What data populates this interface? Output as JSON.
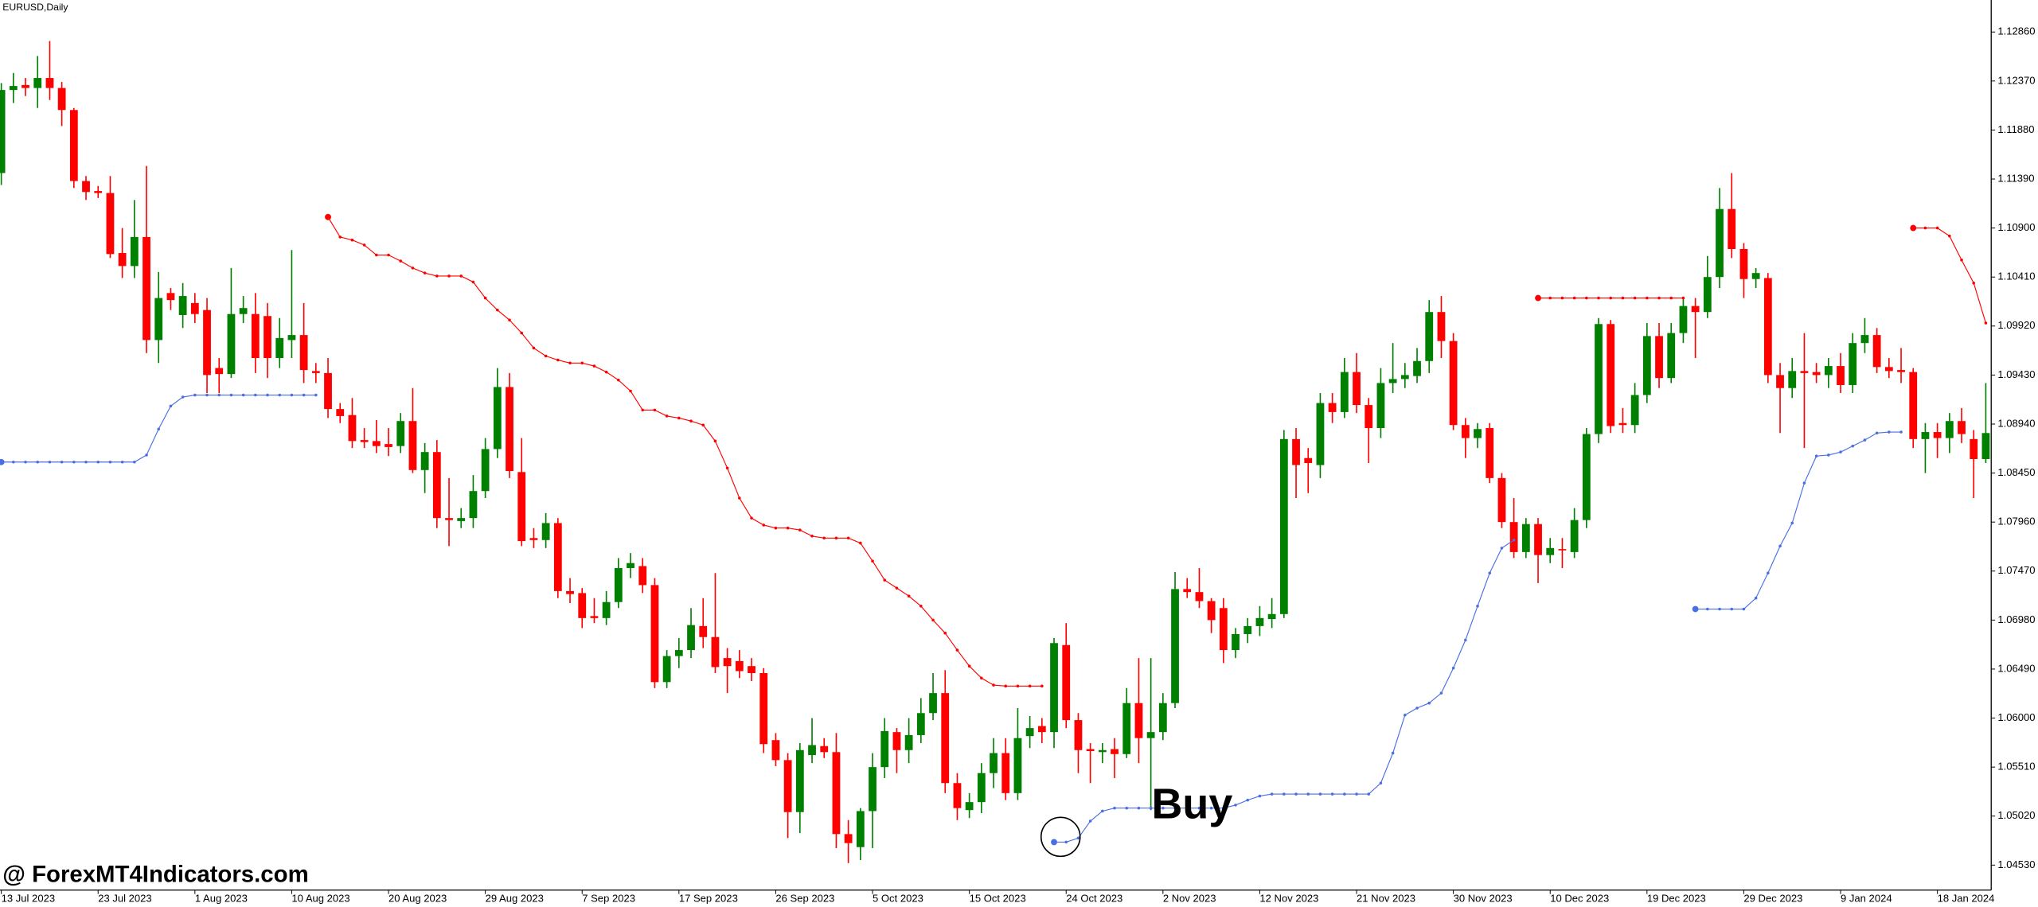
{
  "chart_data": {
    "type": "candlestick",
    "title": "EURUSD,Daily",
    "watermark": "@ ForexMT4Indicators.com",
    "annotation": "Buy",
    "up_color": "#008000",
    "down_color": "#ff0000",
    "ylim": [
      1.0428,
      1.1318
    ],
    "yticks": [
      {
        "value": 1.0453,
        "label": "1.04530"
      },
      {
        "value": 1.0502,
        "label": "1.05020"
      },
      {
        "value": 1.0551,
        "label": "1.05510"
      },
      {
        "value": 1.06,
        "label": "1.06000"
      },
      {
        "value": 1.0649,
        "label": "1.06490"
      },
      {
        "value": 1.0698,
        "label": "1.06980"
      },
      {
        "value": 1.0747,
        "label": "1.07470"
      },
      {
        "value": 1.0796,
        "label": "1.07960"
      },
      {
        "value": 1.0845,
        "label": "1.08450"
      },
      {
        "value": 1.0894,
        "label": "1.08940"
      },
      {
        "value": 1.0943,
        "label": "1.09430"
      },
      {
        "value": 1.0992,
        "label": "1.09920"
      },
      {
        "value": 1.1041,
        "label": "1.10410"
      },
      {
        "value": 1.109,
        "label": "1.10900"
      },
      {
        "value": 1.1139,
        "label": "1.11390"
      },
      {
        "value": 1.1188,
        "label": "1.11880"
      },
      {
        "value": 1.1237,
        "label": "1.12370"
      },
      {
        "value": 1.1286,
        "label": "1.12860"
      }
    ],
    "categories": [
      "13 Jul 2023",
      null,
      null,
      null,
      null,
      null,
      null,
      null,
      "23 Jul 2023",
      null,
      null,
      null,
      null,
      null,
      null,
      null,
      "1 Aug 2023",
      null,
      null,
      null,
      null,
      null,
      null,
      null,
      "10 Aug 2023",
      null,
      null,
      null,
      null,
      null,
      null,
      null,
      "20 Aug 2023",
      null,
      null,
      null,
      null,
      null,
      null,
      null,
      "29 Aug 2023",
      null,
      null,
      null,
      null,
      null,
      null,
      null,
      "7 Sep 2023",
      null,
      null,
      null,
      null,
      null,
      null,
      null,
      "17 Sep 2023",
      null,
      null,
      null,
      null,
      null,
      null,
      null,
      "26 Sep 2023",
      null,
      null,
      null,
      null,
      null,
      null,
      null,
      "5 Oct 2023",
      null,
      null,
      null,
      null,
      null,
      null,
      null,
      "15 Oct 2023",
      null,
      null,
      null,
      null,
      null,
      null,
      null,
      "24 Oct 2023",
      null,
      null,
      null,
      null,
      null,
      null,
      null,
      "2 Nov 2023",
      null,
      null,
      null,
      null,
      null,
      null,
      null,
      "12 Nov 2023",
      null,
      null,
      null,
      null,
      null,
      null,
      null,
      "21 Nov 2023",
      null,
      null,
      null,
      null,
      null,
      null,
      null,
      "30 Nov 2023",
      null,
      null,
      null,
      null,
      null,
      null,
      null,
      "10 Dec 2023",
      null,
      null,
      null,
      null,
      null,
      null,
      null,
      "19 Dec 2023",
      null,
      null,
      null,
      null,
      null,
      null,
      null,
      "29 Dec 2023",
      null,
      null,
      null,
      null,
      null,
      null,
      null,
      "9 Jan 2024",
      null,
      null,
      null,
      null,
      null,
      null,
      null,
      "18 Jan 2024",
      null,
      null,
      null,
      null
    ],
    "open": [
      1.1145,
      1.1228,
      1.1233,
      1.123,
      1.124,
      1.123,
      1.1208,
      1.1137,
      1.1127,
      1.1125,
      1.1065,
      1.1052,
      1.1081,
      1.0978,
      1.1025,
      1.1003,
      1.1015,
      1.1008,
      1.095,
      1.0944,
      1.1004,
      1.1004,
      1.1002,
      1.096,
      1.0978,
      1.0983,
      1.0947,
      1.0945,
      1.0909,
      1.0903,
      1.0878,
      1.0877,
      1.0874,
      1.0872,
      1.0897,
      1.0848,
      1.0866,
      1.08,
      1.0797,
      1.08,
      1.0827,
      1.0869,
      1.0931,
      1.0846,
      1.078,
      1.0778,
      1.0795,
      1.0727,
      1.0725,
      1.0702,
      1.07,
      1.0716,
      1.075,
      1.0752,
      1.0733,
      1.0636,
      1.0662,
      1.0668,
      1.0692,
      1.0681,
      1.066,
      1.0657,
      1.0652,
      1.0645,
      1.0578,
      1.0558,
      1.0506,
      1.0563,
      1.0572,
      1.0566,
      1.0484,
      1.0471,
      1.0507,
      1.0551,
      1.0586,
      1.0568,
      1.0583,
      1.0605,
      1.0625,
      1.0535,
      1.0508,
      1.0516,
      1.0545,
      1.0565,
      1.0525,
      1.0582,
      1.0592,
      1.0586,
      1.0673,
      1.0598,
      1.0569,
      1.0566,
      1.0569,
      1.0564,
      1.0615,
      1.058,
      1.0586,
      1.0615,
      1.0729,
      1.0726,
      1.0717,
      1.071,
      1.0668,
      1.0684,
      1.0692,
      1.0699,
      1.0704,
      1.0879,
      1.086,
      1.0853,
      1.0915,
      1.0906,
      1.0946,
      1.0913,
      1.089,
      1.0935,
      1.0939,
      1.0942,
      1.0957,
      1.1006,
      1.0977,
      1.0893,
      1.088,
      1.089,
      1.084,
      1.0796,
      1.0766,
      1.0794,
      1.0763,
      1.0769,
      1.0766,
      1.0798,
      1.0884,
      1.0994,
      1.0895,
      1.0893,
      1.0923,
      1.0982,
      1.094,
      1.0985,
      1.1012,
      1.1006,
      1.1041,
      1.1109,
      1.1069,
      1.1039,
      1.104,
      1.0943,
      1.093,
      1.0947,
      1.0946,
      1.0943,
      1.0952,
      1.0933,
      1.0975,
      1.0983,
      1.0951,
      1.0948,
      1.0946,
      1.0879,
      1.0886,
      1.088,
      1.0897,
      1.0879,
      1.0859
    ],
    "high": [
      1.1235,
      1.1245,
      1.124,
      1.1262,
      1.1277,
      1.1236,
      1.121,
      1.1142,
      1.1132,
      1.1142,
      1.109,
      1.1118,
      1.1152,
      1.1046,
      1.103,
      1.1035,
      1.1025,
      1.102,
      1.096,
      1.105,
      1.1022,
      1.1025,
      1.1015,
      1.1,
      1.1068,
      1.1015,
      1.0955,
      1.096,
      1.0915,
      1.092,
      1.089,
      1.0898,
      1.089,
      1.0905,
      1.093,
      1.0875,
      1.0878,
      1.084,
      1.081,
      1.0843,
      1.088,
      1.095,
      1.0945,
      1.088,
      1.079,
      1.0805,
      1.08,
      1.074,
      1.073,
      1.072,
      1.0727,
      1.076,
      1.0765,
      1.076,
      1.074,
      1.0668,
      1.068,
      1.071,
      1.072,
      1.0745,
      1.067,
      1.0668,
      1.066,
      1.065,
      1.0585,
      1.0565,
      1.0575,
      1.06,
      1.058,
      1.0585,
      1.0498,
      1.051,
      1.0565,
      1.06,
      1.059,
      1.06,
      1.062,
      1.0645,
      1.0648,
      1.0545,
      1.0525,
      1.0555,
      1.058,
      1.058,
      1.061,
      1.0602,
      1.06,
      1.068,
      1.0695,
      1.0605,
      1.0575,
      1.0575,
      1.058,
      1.063,
      1.066,
      1.066,
      1.0625,
      1.0746,
      1.074,
      1.075,
      1.072,
      1.072,
      1.069,
      1.07,
      1.0712,
      1.072,
      1.0888,
      1.089,
      1.087,
      1.0925,
      1.0925,
      1.096,
      1.0965,
      1.092,
      1.095,
      1.0975,
      1.0955,
      1.097,
      1.1018,
      1.1022,
      1.0985,
      1.09,
      1.0895,
      1.0895,
      1.0845,
      1.082,
      1.08,
      1.08,
      1.078,
      1.078,
      1.081,
      1.089,
      1.1,
      1.0998,
      1.091,
      1.0935,
      1.0995,
      1.0995,
      1.0995,
      1.102,
      1.102,
      1.1062,
      1.113,
      1.1145,
      1.1075,
      1.105,
      1.1045,
      1.0955,
      1.096,
      1.0985,
      1.0955,
      1.096,
      1.0965,
      1.0985,
      1.1,
      1.099,
      1.096,
      1.097,
      1.095,
      1.0895,
      1.0895,
      1.0905,
      1.091,
      1.0888,
      1.0935
    ],
    "low": [
      1.1133,
      1.1215,
      1.1222,
      1.121,
      1.1218,
      1.1192,
      1.113,
      1.1118,
      1.112,
      1.106,
      1.104,
      1.104,
      1.0965,
      1.0955,
      1.1008,
      1.099,
      1.0995,
      1.0925,
      1.0925,
      1.094,
      1.0995,
      1.0945,
      1.094,
      1.095,
      1.096,
      1.0935,
      1.0935,
      1.09,
      1.0895,
      1.087,
      1.087,
      1.0865,
      1.0862,
      1.0865,
      1.0845,
      1.0825,
      1.079,
      1.0772,
      1.079,
      1.079,
      1.082,
      1.086,
      1.084,
      1.0772,
      1.077,
      1.077,
      1.072,
      1.0715,
      1.069,
      1.0695,
      1.0693,
      1.071,
      1.074,
      1.0725,
      1.063,
      1.063,
      1.065,
      1.066,
      1.067,
      1.0645,
      1.0625,
      1.064,
      1.0637,
      1.0565,
      1.0552,
      1.048,
      1.0485,
      1.0555,
      1.056,
      1.047,
      1.0455,
      1.0458,
      1.047,
      1.054,
      1.0545,
      1.0555,
      1.0575,
      1.0598,
      1.0525,
      1.0498,
      1.05,
      1.0505,
      1.053,
      1.0518,
      1.0518,
      1.057,
      1.0575,
      1.057,
      1.059,
      1.0545,
      1.0535,
      1.0555,
      1.054,
      1.056,
      1.0555,
      1.0508,
      1.0578,
      1.061,
      1.072,
      1.071,
      1.0685,
      1.0655,
      1.066,
      1.0675,
      1.0682,
      1.069,
      1.07,
      1.082,
      1.0825,
      1.084,
      1.0895,
      1.09,
      1.0905,
      1.0855,
      1.088,
      1.0925,
      1.093,
      1.0935,
      1.0945,
      1.096,
      1.0888,
      1.086,
      1.087,
      1.0835,
      1.079,
      1.076,
      1.076,
      1.0735,
      1.0755,
      1.075,
      1.076,
      1.079,
      1.0875,
      1.0885,
      1.0885,
      1.0885,
      1.0915,
      1.093,
      1.0935,
      1.0975,
      1.096,
      1.1,
      1.103,
      1.106,
      1.102,
      1.103,
      1.0935,
      1.0885,
      1.092,
      1.087,
      1.0935,
      1.093,
      1.0925,
      1.0925,
      1.0965,
      1.0945,
      1.094,
      1.0935,
      1.087,
      1.0845,
      1.086,
      1.0865,
      1.0875,
      1.082,
      1.0855
    ],
    "close": [
      1.1228,
      1.1232,
      1.123,
      1.124,
      1.123,
      1.1208,
      1.1137,
      1.1126,
      1.1125,
      1.1064,
      1.1052,
      1.1081,
      1.0978,
      1.102,
      1.1018,
      1.1022,
      1.1004,
      1.0943,
      1.0944,
      1.1004,
      1.101,
      1.096,
      1.096,
      1.098,
      1.0983,
      1.0948,
      1.0945,
      1.0909,
      1.0902,
      1.0877,
      1.0876,
      1.0872,
      1.0871,
      1.0897,
      1.0848,
      1.0866,
      1.08,
      1.0798,
      1.08,
      1.0827,
      1.0869,
      1.0931,
      1.0847,
      1.0777,
      1.0778,
      1.0795,
      1.0727,
      1.0724,
      1.07,
      1.07,
      1.0716,
      1.075,
      1.0755,
      1.0733,
      1.0636,
      1.0662,
      1.0668,
      1.0693,
      1.0681,
      1.0651,
      1.0652,
      1.0647,
      1.0645,
      1.0574,
      1.0558,
      1.0506,
      1.0568,
      1.0573,
      1.0566,
      1.0484,
      1.0475,
      1.0507,
      1.0551,
      1.0587,
      1.0568,
      1.0583,
      1.0605,
      1.0625,
      1.0535,
      1.051,
      1.0516,
      1.0545,
      1.0565,
      1.0525,
      1.058,
      1.059,
      1.0586,
      1.0675,
      1.0598,
      1.0568,
      1.0567,
      1.0568,
      1.0564,
      1.0615,
      1.058,
      1.0586,
      1.0615,
      1.0729,
      1.0726,
      1.0717,
      1.0698,
      1.0668,
      1.0684,
      1.0692,
      1.07,
      1.0704,
      1.0879,
      1.0853,
      1.0855,
      1.0915,
      1.0906,
      1.0946,
      1.0913,
      1.089,
      1.0935,
      1.0939,
      1.0943,
      1.0957,
      1.1006,
      1.0977,
      1.0893,
      1.088,
      1.0889,
      1.084,
      1.0796,
      1.0766,
      1.0794,
      1.0763,
      1.077,
      1.0768,
      1.0798,
      1.0884,
      1.0994,
      1.0892,
      1.0893,
      1.0923,
      1.0982,
      1.094,
      1.0985,
      1.1012,
      1.1006,
      1.1041,
      1.1109,
      1.1069,
      1.1039,
      1.1045,
      1.0943,
      1.093,
      1.0947,
      1.0945,
      1.0943,
      1.0952,
      1.0933,
      1.0975,
      1.0983,
      1.0951,
      1.0947,
      1.0946,
      1.0879,
      1.0886,
      1.088,
      1.0897,
      1.0884,
      1.0859,
      1.0885
    ],
    "lines": [
      {
        "color": "#ff0000",
        "values": [
          null,
          null,
          null,
          null,
          null,
          null,
          null,
          null,
          null,
          null,
          null,
          null,
          null,
          null,
          null,
          null,
          null,
          null,
          null,
          null,
          null,
          null,
          null,
          null,
          null,
          null,
          null,
          1.1101,
          1.1081,
          1.1078,
          1.1073,
          1.1063,
          1.1063,
          1.1057,
          1.105,
          1.1045,
          1.1042,
          1.1042,
          1.1042,
          1.1036,
          1.102,
          1.1008,
          1.0998,
          1.0985,
          1.097,
          1.0962,
          1.0958,
          1.0955,
          1.0955,
          1.0952,
          1.0946,
          1.0938,
          1.0927,
          1.0908,
          1.0908,
          1.0902,
          1.09,
          1.0897,
          1.0893,
          1.0877,
          1.085,
          1.082,
          1.08,
          1.0793,
          1.079,
          1.079,
          1.0788,
          1.0782,
          1.078,
          1.078,
          1.078,
          1.0775,
          1.0757,
          1.0738,
          1.073,
          1.0722,
          1.0712,
          1.0698,
          1.0685,
          1.0668,
          1.0652,
          1.064,
          1.0633,
          1.0632,
          1.0632,
          1.0632,
          1.0632,
          null,
          null,
          null,
          null,
          null,
          null,
          null,
          null,
          null,
          null,
          null,
          null,
          null,
          null,
          null,
          null,
          null,
          null,
          null,
          null,
          null,
          null,
          null,
          null,
          null,
          null,
          null,
          null,
          null,
          null,
          null,
          null,
          null,
          null,
          null,
          null,
          null,
          null,
          null,
          null,
          1.102,
          1.102,
          1.102,
          1.102,
          1.102,
          1.102,
          1.102,
          1.102,
          1.102,
          1.102,
          1.102,
          1.102,
          1.102,
          null,
          null,
          null,
          null,
          null,
          null,
          null,
          null,
          null,
          null,
          null,
          null,
          null,
          null,
          null,
          null,
          null,
          null,
          1.109,
          1.109,
          1.109,
          1.1082,
          1.1058,
          1.1035,
          1.0995
        ]
      },
      {
        "color": "#4a6fe3",
        "values": [
          1.0856,
          1.0856,
          1.0856,
          1.0856,
          1.0856,
          1.0856,
          1.0856,
          1.0856,
          1.0856,
          1.0856,
          1.0856,
          1.0856,
          1.0863,
          1.0889,
          1.0912,
          1.0921,
          1.0923,
          1.0923,
          1.0923,
          1.0923,
          1.0923,
          1.0923,
          1.0923,
          1.0923,
          1.0923,
          1.0923,
          1.0923,
          null,
          null,
          null,
          null,
          null,
          null,
          null,
          null,
          null,
          null,
          null,
          null,
          null,
          null,
          null,
          null,
          null,
          null,
          null,
          null,
          null,
          null,
          null,
          null,
          null,
          null,
          null,
          null,
          null,
          null,
          null,
          null,
          null,
          null,
          null,
          null,
          null,
          null,
          null,
          null,
          null,
          null,
          null,
          null,
          null,
          null,
          null,
          null,
          null,
          null,
          null,
          null,
          null,
          null,
          null,
          null,
          null,
          null,
          null,
          null,
          1.0476,
          1.0476,
          1.048,
          1.0497,
          1.0507,
          1.051,
          1.051,
          1.051,
          1.051,
          1.051,
          1.051,
          1.051,
          1.051,
          1.051,
          1.051,
          1.0513,
          1.0518,
          1.0522,
          1.0524,
          1.0524,
          1.0524,
          1.0524,
          1.0524,
          1.0524,
          1.0524,
          1.0524,
          1.0524,
          1.0535,
          1.0565,
          1.0603,
          1.061,
          1.0615,
          1.0625,
          1.065,
          1.0678,
          1.0712,
          1.0745,
          1.077,
          1.0778,
          null,
          null,
          null,
          null,
          null,
          null,
          null,
          null,
          null,
          null,
          null,
          null,
          null,
          null,
          1.0709,
          1.0709,
          1.0709,
          1.0709,
          1.0709,
          1.072,
          1.0745,
          1.0772,
          1.0795,
          1.0835,
          1.0862,
          1.0863,
          1.0866,
          1.0872,
          1.0878,
          1.0885,
          1.0886,
          1.0886,
          null,
          null,
          null,
          null,
          null,
          null,
          null
        ]
      }
    ]
  }
}
